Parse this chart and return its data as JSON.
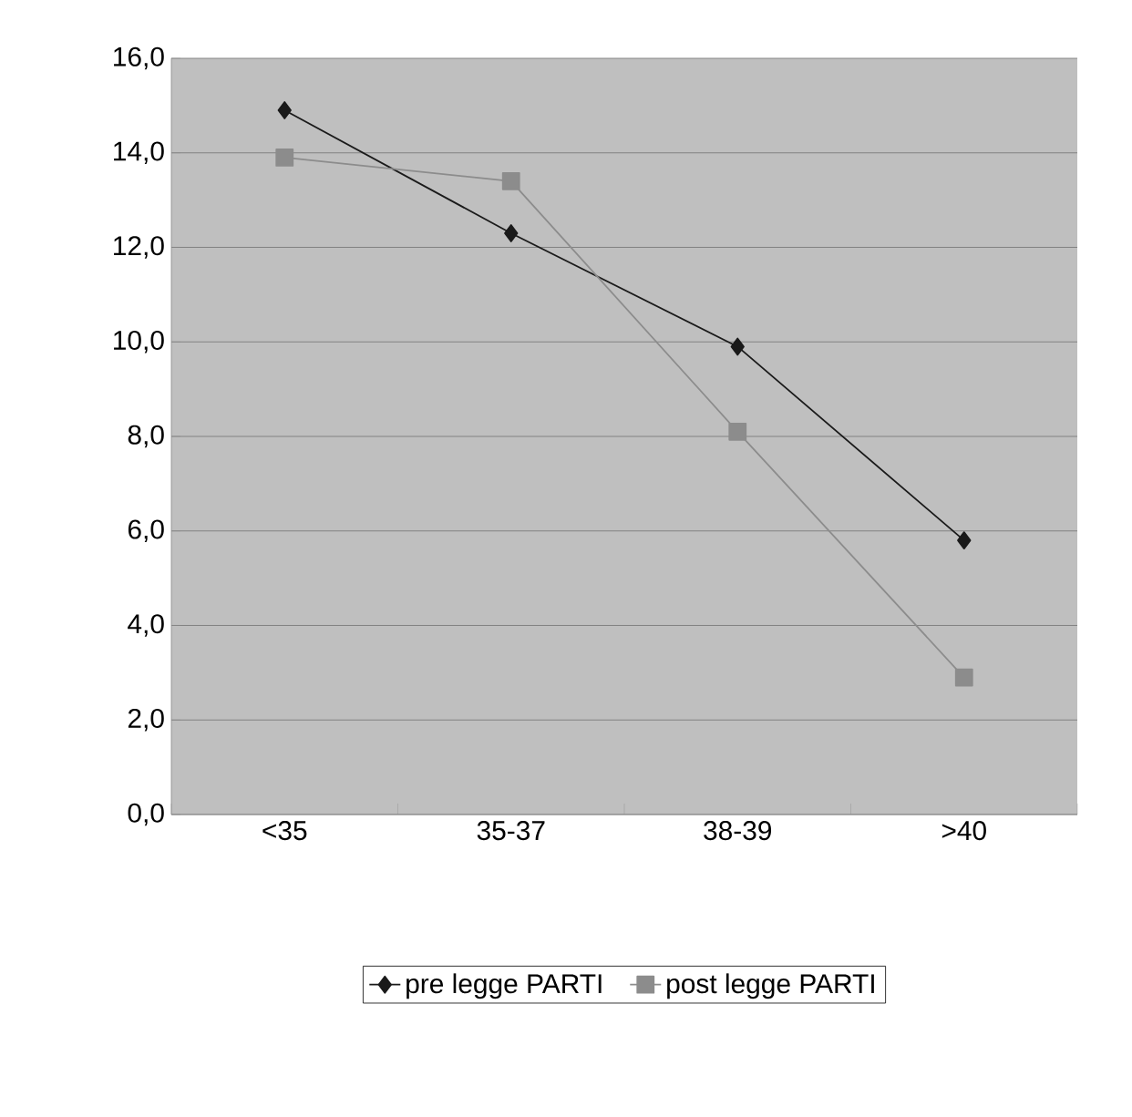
{
  "chart_data": {
    "type": "line",
    "categories": [
      "<35",
      "35-37",
      "38-39",
      ">40"
    ],
    "series": [
      {
        "name": "pre legge PARTI",
        "color": "#1a1a1a",
        "marker": "diamond",
        "values": [
          14.9,
          12.3,
          9.9,
          5.8
        ]
      },
      {
        "name": "post legge PARTI",
        "color": "#8c8c8c",
        "marker": "square",
        "values": [
          13.9,
          13.4,
          8.1,
          2.9
        ]
      }
    ],
    "ylim": [
      0,
      16
    ],
    "yticks": [
      {
        "value": 0,
        "label": "0,0"
      },
      {
        "value": 2,
        "label": "2,0"
      },
      {
        "value": 4,
        "label": "4,0"
      },
      {
        "value": 6,
        "label": "6,0"
      },
      {
        "value": 8,
        "label": "8,0"
      },
      {
        "value": 10,
        "label": "10,0"
      },
      {
        "value": 12,
        "label": "12,0"
      },
      {
        "value": 14,
        "label": "14,0"
      },
      {
        "value": 16,
        "label": "16,0"
      }
    ],
    "grid": "y",
    "legend": "bottom",
    "line_style": "solid"
  }
}
